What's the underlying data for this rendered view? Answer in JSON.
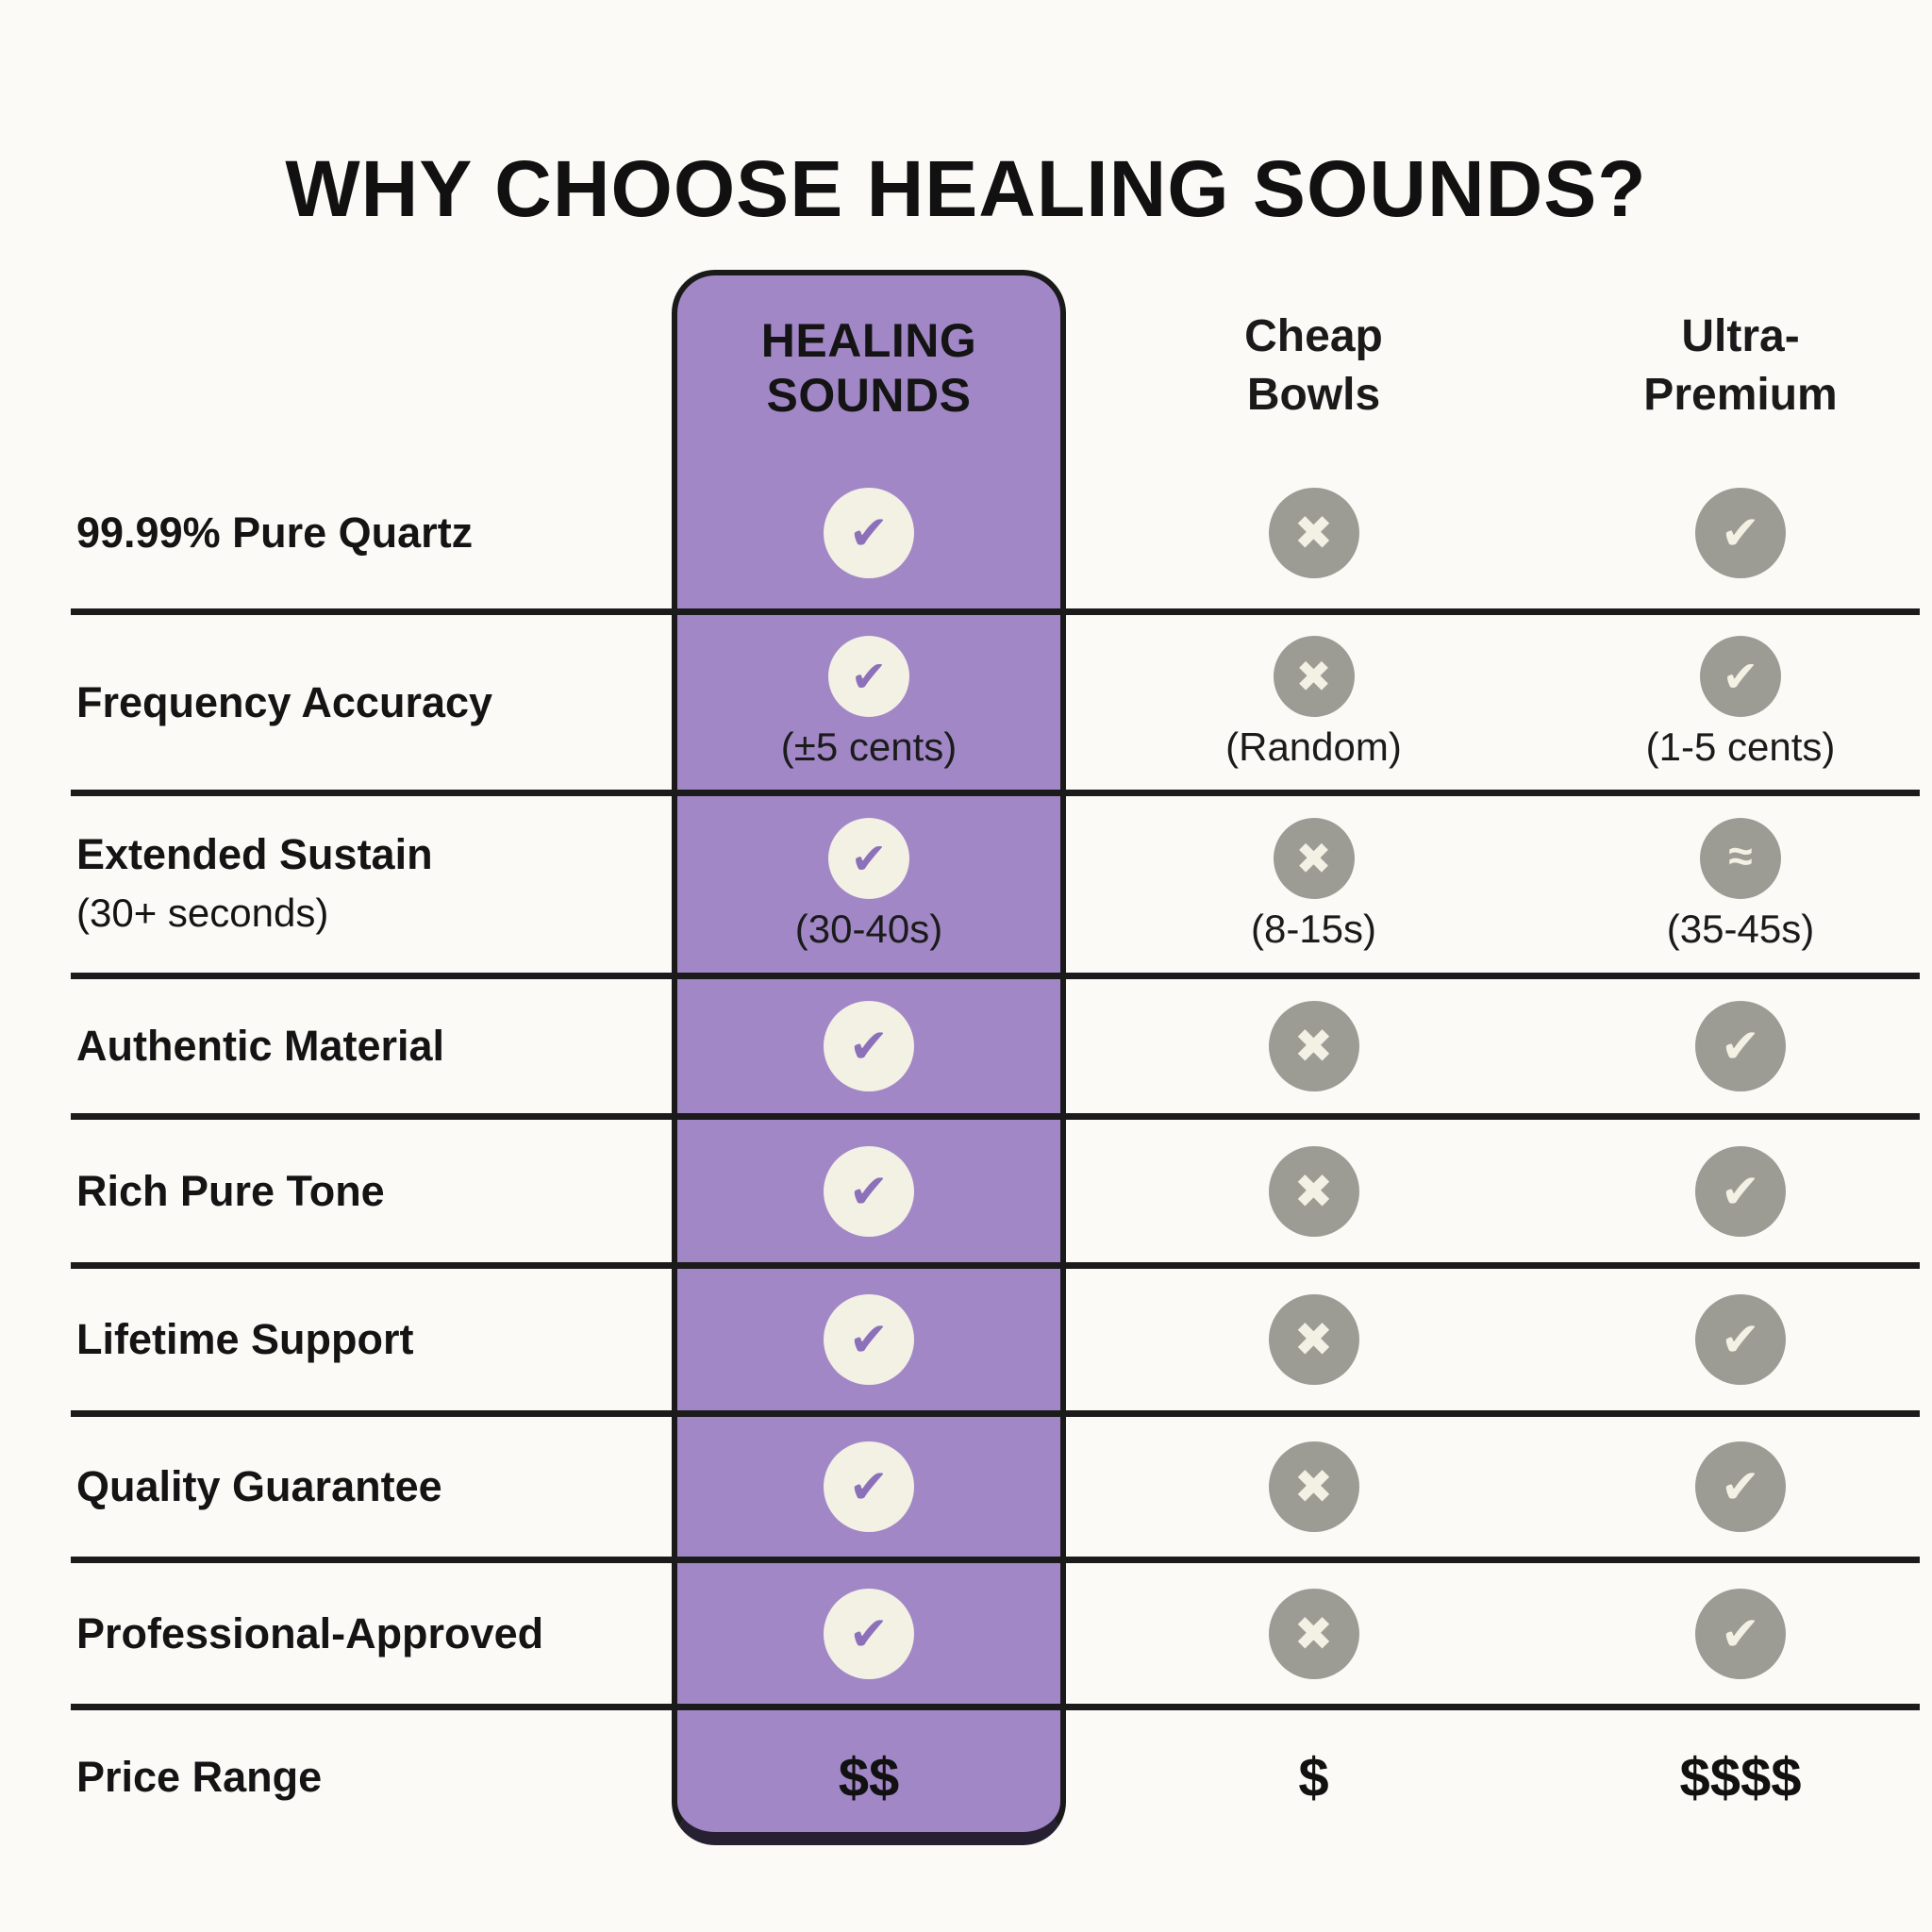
{
  "title": "WHY CHOOSE HEALING SOUNDS?",
  "columns": {
    "brand": {
      "line1": "HEALING",
      "line2": "SOUNDS"
    },
    "competitor1": {
      "line1": "Cheap",
      "line2": "Bowls"
    },
    "competitor2": {
      "line1": "Ultra-",
      "line2": "Premium"
    }
  },
  "colors": {
    "accent_purple": "#a287c7",
    "check_purple": "#8d70ba",
    "gray_badge": "#9c9c94",
    "cream": "#f3f0e4",
    "line_black": "#1b1b1b",
    "background": "#fcfaf6"
  },
  "icons": {
    "check": "check-icon",
    "cross": "cross-icon",
    "approx": "approx-icon"
  },
  "rows": [
    {
      "label": "99.99% Pure Quartz",
      "cells": [
        {
          "glyph": "✔",
          "variant": "accent"
        },
        {
          "glyph": "✖",
          "variant": "gray"
        },
        {
          "glyph": "✔",
          "variant": "gray"
        }
      ]
    },
    {
      "label": "Frequency Accuracy",
      "cells": [
        {
          "glyph": "✔",
          "variant": "accent",
          "note": "(±5 cents)"
        },
        {
          "glyph": "✖",
          "variant": "gray",
          "note": "(Random)"
        },
        {
          "glyph": "✔",
          "variant": "gray",
          "note": "(1-5 cents)"
        }
      ]
    },
    {
      "label": "Extended Sustain",
      "sublabel": "(30+ seconds)",
      "cells": [
        {
          "glyph": "✔",
          "variant": "accent",
          "note": "(30-40s)"
        },
        {
          "glyph": "✖",
          "variant": "gray",
          "note": "(8-15s)"
        },
        {
          "glyph": "≈",
          "variant": "gray",
          "note": "(35-45s)"
        }
      ]
    },
    {
      "label": "Authentic Material",
      "cells": [
        {
          "glyph": "✔",
          "variant": "accent"
        },
        {
          "glyph": "✖",
          "variant": "gray"
        },
        {
          "glyph": "✔",
          "variant": "gray"
        }
      ]
    },
    {
      "label": "Rich Pure Tone",
      "cells": [
        {
          "glyph": "✔",
          "variant": "accent"
        },
        {
          "glyph": "✖",
          "variant": "gray"
        },
        {
          "glyph": "✔",
          "variant": "gray"
        }
      ]
    },
    {
      "label": "Lifetime Support",
      "cells": [
        {
          "glyph": "✔",
          "variant": "accent"
        },
        {
          "glyph": "✖",
          "variant": "gray"
        },
        {
          "glyph": "✔",
          "variant": "gray"
        }
      ]
    },
    {
      "label": "Quality Guarantee",
      "cells": [
        {
          "glyph": "✔",
          "variant": "accent"
        },
        {
          "glyph": "✖",
          "variant": "gray"
        },
        {
          "glyph": "✔",
          "variant": "gray"
        }
      ]
    },
    {
      "label": "Professional-Approved",
      "cells": [
        {
          "glyph": "✔",
          "variant": "accent"
        },
        {
          "glyph": "✖",
          "variant": "gray"
        },
        {
          "glyph": "✔",
          "variant": "gray"
        }
      ]
    },
    {
      "label": "Price Range",
      "cells": [
        {
          "text": "$$"
        },
        {
          "text": "$"
        },
        {
          "text": "$$$$"
        }
      ]
    }
  ]
}
